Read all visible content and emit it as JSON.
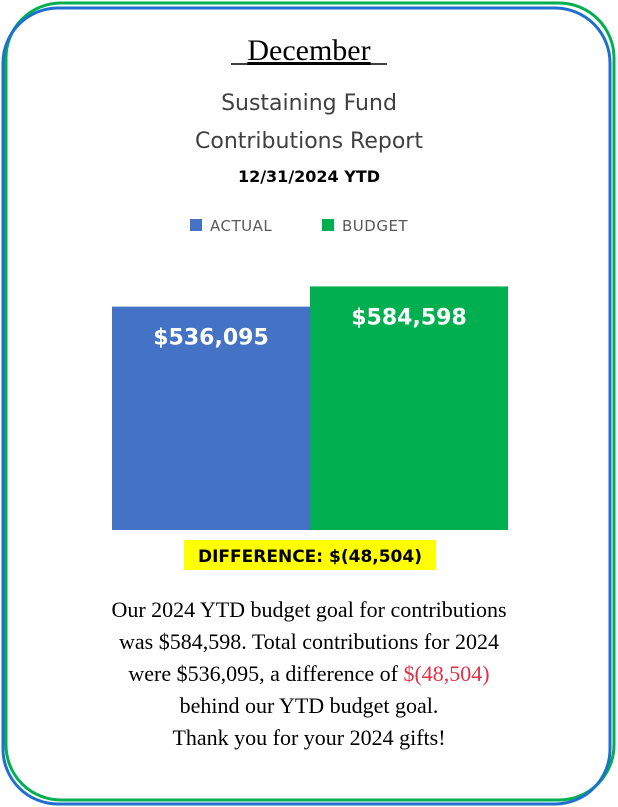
{
  "month": "December",
  "chart_data": {
    "type": "bar",
    "title_lines": [
      "Sustaining Fund",
      "Contributions Report"
    ],
    "subtitle": "12/31/2024 YTD",
    "categories": [
      "ACTUAL",
      "BUDGET"
    ],
    "colors": [
      "#4472c4",
      "#00b050"
    ],
    "values": [
      536095,
      584598
    ],
    "value_labels": [
      "$536,095",
      "$584,598"
    ],
    "ylim": [
      0,
      600000
    ],
    "annotation": "DIFFERENCE: $(48,504)"
  },
  "message": [
    "Our 2024 YTD budget goal for contributions",
    "was $584,598. Total contributions for 2024",
    "were $536,095, a difference of ",
    "behind our YTD budget goal.",
    "Thank you for your 2024 gifts!"
  ],
  "message_highlight": "$(48,504)"
}
